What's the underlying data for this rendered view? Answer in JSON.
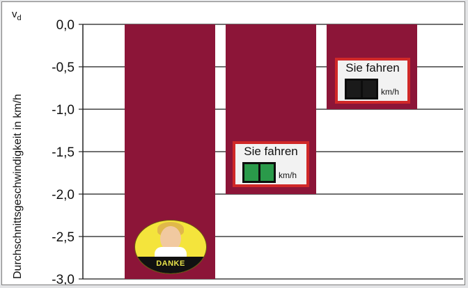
{
  "chart_data": {
    "type": "bar",
    "categories": [
      "",
      "",
      ""
    ],
    "values": [
      -3.0,
      -2.0,
      -1.0
    ],
    "ylabel": "Durchschnittsgeschwindigkeit in km/h",
    "ylim": [
      -3.0,
      0.0
    ],
    "yticks": [
      "0,0",
      "-0,5",
      "-1,0",
      "-1,5",
      "-2,0",
      "-2,5",
      "-3,0"
    ],
    "ytick_values": [
      0.0,
      -0.5,
      -1.0,
      -1.5,
      -2.0,
      -2.5,
      -3.0
    ],
    "grid": true,
    "bar_color": "#8c1538",
    "y_variable_symbol": "v",
    "y_variable_subscript": "d"
  },
  "bar_images": [
    {
      "type": "thanks-badge",
      "text": "DANKE"
    },
    {
      "type": "speed-sign",
      "title": "Sie fahren",
      "unit": "km/h",
      "digit_color": "#2a9a4a"
    },
    {
      "type": "speed-sign",
      "title": "Sie fahren",
      "unit": "km/h",
      "digit_color": "#1a1a1a"
    }
  ],
  "colors": {
    "sign_border": "#d02828",
    "badge_yellow": "#f4e43c",
    "badge_text": "#e8e24a"
  }
}
